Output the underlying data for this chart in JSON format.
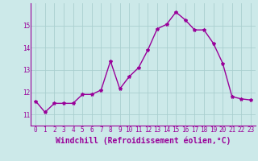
{
  "x": [
    0,
    1,
    2,
    3,
    4,
    5,
    6,
    7,
    8,
    9,
    10,
    11,
    12,
    13,
    14,
    15,
    16,
    17,
    18,
    19,
    20,
    21,
    22,
    23
  ],
  "y": [
    11.6,
    11.1,
    11.5,
    11.5,
    11.5,
    11.9,
    11.9,
    12.1,
    13.4,
    12.15,
    12.7,
    13.1,
    13.9,
    14.85,
    15.05,
    15.6,
    15.25,
    14.8,
    14.8,
    14.2,
    13.3,
    11.8,
    11.7,
    11.65
  ],
  "line_color": "#990099",
  "marker": "*",
  "marker_size": 3,
  "xlabel": "Windchill (Refroidissement éolien,°C)",
  "xlabel_fontsize": 7,
  "ylim": [
    10.5,
    16.0
  ],
  "xlim": [
    -0.5,
    23.5
  ],
  "yticks": [
    11,
    12,
    13,
    14,
    15
  ],
  "xticks": [
    0,
    1,
    2,
    3,
    4,
    5,
    6,
    7,
    8,
    9,
    10,
    11,
    12,
    13,
    14,
    15,
    16,
    17,
    18,
    19,
    20,
    21,
    22,
    23
  ],
  "bg_color": "#cce9e9",
  "grid_color": "#aacfcf",
  "tick_color": "#990099",
  "tick_fontsize": 5.5,
  "line_width": 1.0,
  "fig_width": 3.2,
  "fig_height": 2.0,
  "dpi": 100
}
